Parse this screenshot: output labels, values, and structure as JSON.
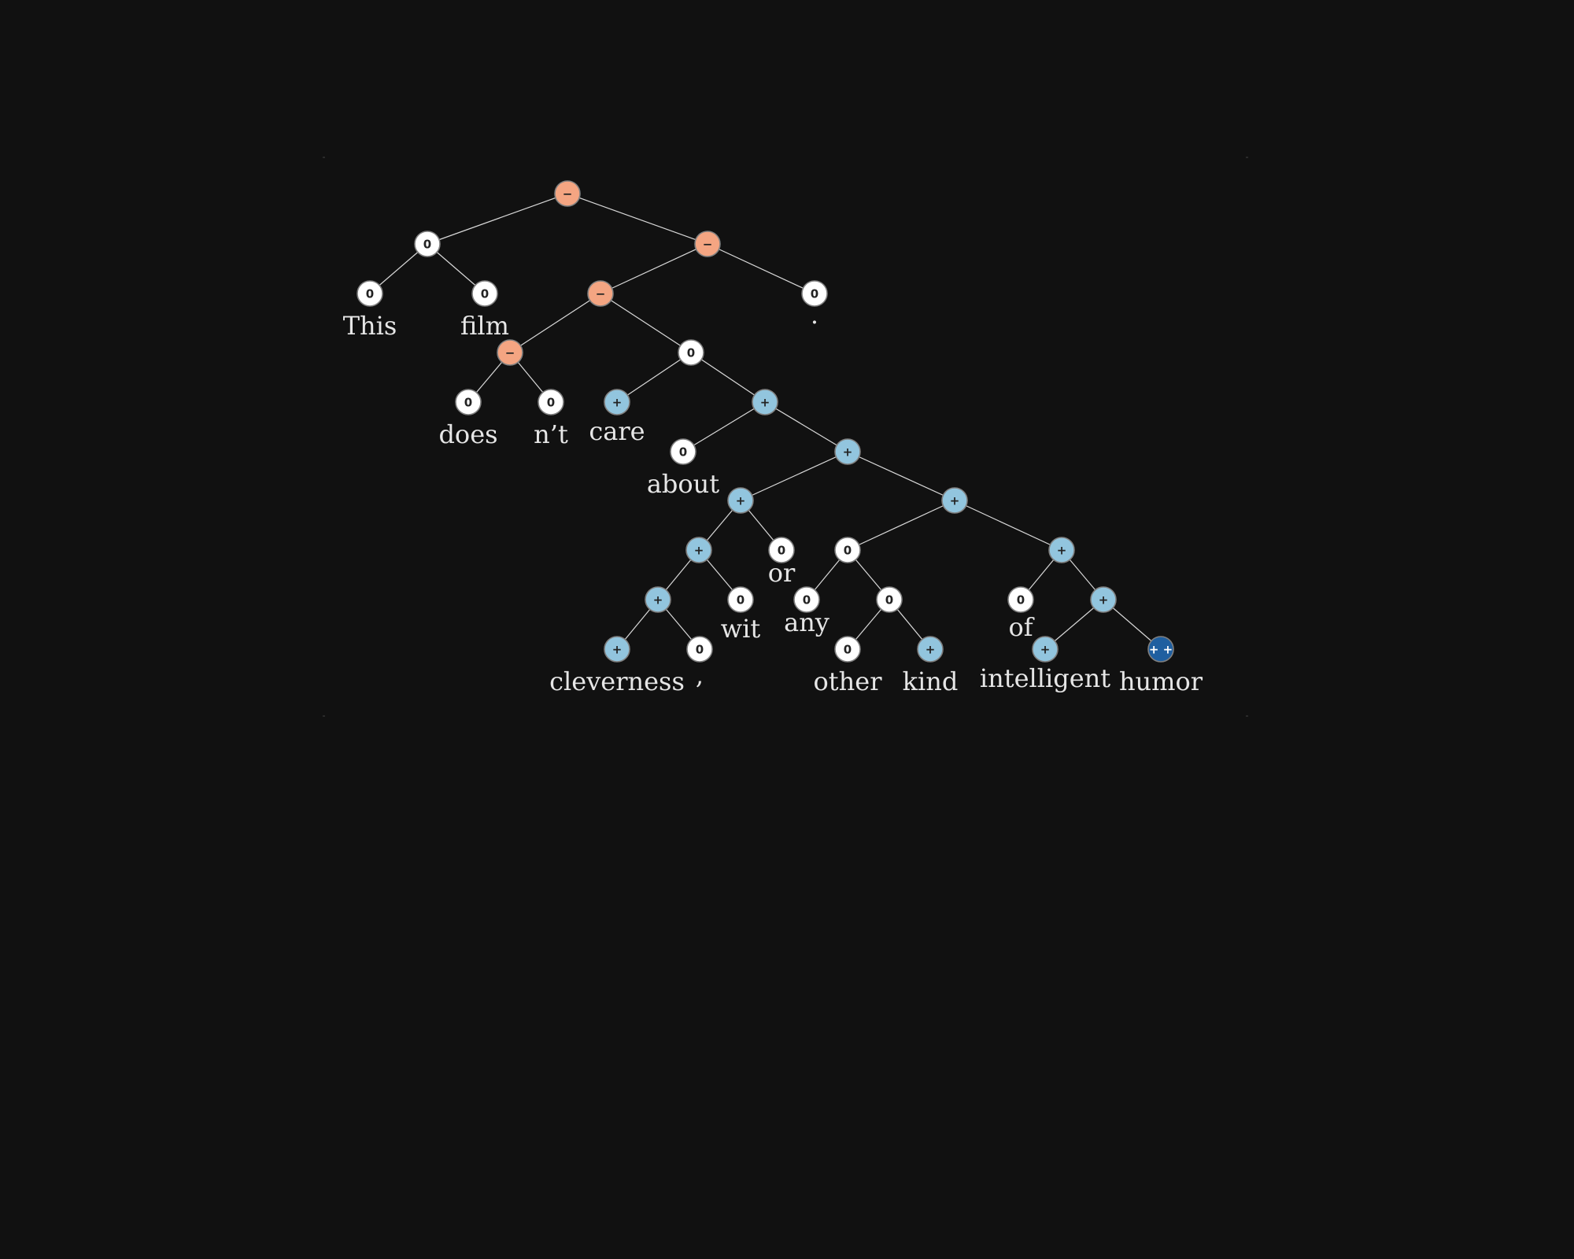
{
  "palette": {
    "background": "#111111",
    "neutral": "#ffffff",
    "negative": "#f4a582",
    "positive": "#92c5de",
    "very_positive": "#1f5fa0"
  },
  "legend_symbols": {
    "neutral": "0",
    "negative": "−",
    "positive": "+",
    "very_positive": "+ +"
  },
  "nodes": [
    {
      "id": "n1",
      "sentiment": "negative"
    },
    {
      "id": "n2",
      "sentiment": "neutral"
    },
    {
      "id": "n3",
      "sentiment": "neutral",
      "word": "This"
    },
    {
      "id": "n4",
      "sentiment": "neutral",
      "word": "film"
    },
    {
      "id": "n5",
      "sentiment": "negative"
    },
    {
      "id": "n6",
      "sentiment": "negative"
    },
    {
      "id": "n7",
      "sentiment": "neutral",
      "word": "."
    },
    {
      "id": "n8",
      "sentiment": "negative"
    },
    {
      "id": "n9",
      "sentiment": "neutral"
    },
    {
      "id": "n10",
      "sentiment": "neutral",
      "word": "does"
    },
    {
      "id": "n11",
      "sentiment": "neutral",
      "word": "n’t"
    },
    {
      "id": "n12",
      "sentiment": "positive",
      "word": "care"
    },
    {
      "id": "n13",
      "sentiment": "positive"
    },
    {
      "id": "n14",
      "sentiment": "neutral",
      "word": "about"
    },
    {
      "id": "n15",
      "sentiment": "positive"
    },
    {
      "id": "n16",
      "sentiment": "positive"
    },
    {
      "id": "n17",
      "sentiment": "positive"
    },
    {
      "id": "n18",
      "sentiment": "positive"
    },
    {
      "id": "n19",
      "sentiment": "neutral",
      "word": "or"
    },
    {
      "id": "n20",
      "sentiment": "positive"
    },
    {
      "id": "n21",
      "sentiment": "neutral",
      "word": "wit"
    },
    {
      "id": "n22",
      "sentiment": "positive",
      "word": "cleverness"
    },
    {
      "id": "n23",
      "sentiment": "neutral",
      "word": ","
    },
    {
      "id": "n24",
      "sentiment": "neutral"
    },
    {
      "id": "n25",
      "sentiment": "positive"
    },
    {
      "id": "n26",
      "sentiment": "neutral",
      "word": "any"
    },
    {
      "id": "n27",
      "sentiment": "neutral"
    },
    {
      "id": "n28",
      "sentiment": "neutral",
      "word": "other"
    },
    {
      "id": "n29",
      "sentiment": "positive",
      "word": "kind"
    },
    {
      "id": "n30",
      "sentiment": "neutral",
      "word": "of"
    },
    {
      "id": "n31",
      "sentiment": "positive"
    },
    {
      "id": "n32",
      "sentiment": "positive",
      "word": "intelligent"
    },
    {
      "id": "n33",
      "sentiment": "very_positive",
      "word": "humor"
    }
  ],
  "edges": [
    [
      "n1",
      "n2"
    ],
    [
      "n1",
      "n5"
    ],
    [
      "n2",
      "n3"
    ],
    [
      "n2",
      "n4"
    ],
    [
      "n5",
      "n6"
    ],
    [
      "n5",
      "n7"
    ],
    [
      "n6",
      "n8"
    ],
    [
      "n6",
      "n9"
    ],
    [
      "n8",
      "n10"
    ],
    [
      "n8",
      "n11"
    ],
    [
      "n9",
      "n12"
    ],
    [
      "n9",
      "n13"
    ],
    [
      "n13",
      "n14"
    ],
    [
      "n13",
      "n15"
    ],
    [
      "n15",
      "n16"
    ],
    [
      "n15",
      "n17"
    ],
    [
      "n16",
      "n18"
    ],
    [
      "n16",
      "n19"
    ],
    [
      "n18",
      "n20"
    ],
    [
      "n18",
      "n21"
    ],
    [
      "n20",
      "n22"
    ],
    [
      "n20",
      "n23"
    ],
    [
      "n17",
      "n24"
    ],
    [
      "n17",
      "n25"
    ],
    [
      "n24",
      "n26"
    ],
    [
      "n24",
      "n27"
    ],
    [
      "n27",
      "n28"
    ],
    [
      "n27",
      "n29"
    ],
    [
      "n25",
      "n30"
    ],
    [
      "n25",
      "n31"
    ],
    [
      "n31",
      "n32"
    ],
    [
      "n31",
      "n33"
    ]
  ]
}
